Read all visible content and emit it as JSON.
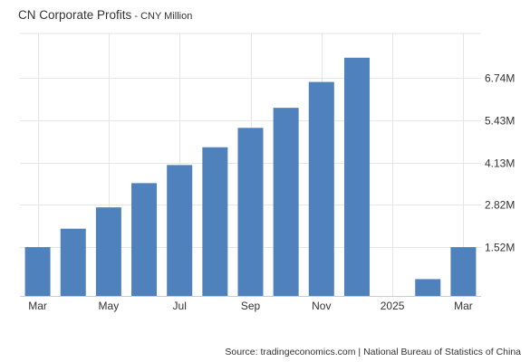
{
  "header": {
    "title": "CN Corporate Profits",
    "separator": " - ",
    "unit": "CNY Million"
  },
  "footer": {
    "source": "Source: tradingeconomics.com | National Bureau of Statistics of China"
  },
  "colors": {
    "bar": "#4f81bd",
    "grid": "#e6e6e6",
    "baseline": "#cccccc"
  },
  "chart_data": {
    "type": "bar",
    "title": "CN Corporate Profits",
    "subtitle": "CNY Million",
    "categories": [
      "2024-03",
      "2024-04",
      "2024-05",
      "2024-06",
      "2024-07",
      "2024-08",
      "2024-09",
      "2024-10",
      "2024-11",
      "2024-12",
      "2025-01",
      "2025-02",
      "2025-03"
    ],
    "values": [
      1510000,
      2080000,
      2740000,
      3490000,
      4050000,
      4600000,
      5200000,
      5820000,
      6620000,
      7370000,
      null,
      520000,
      1510000
    ],
    "x_tick_labels": [
      {
        "category": "2024-03",
        "label": "Mar"
      },
      {
        "category": "2024-05",
        "label": "May"
      },
      {
        "category": "2024-07",
        "label": "Jul"
      },
      {
        "category": "2024-09",
        "label": "Sep"
      },
      {
        "category": "2024-11",
        "label": "Nov"
      },
      {
        "category": "2025-01",
        "label": "2025"
      },
      {
        "category": "2025-03",
        "label": "Mar"
      }
    ],
    "y_ticks": [
      {
        "value": 1520000,
        "label": "1.52M"
      },
      {
        "value": 2820000,
        "label": "2.82M"
      },
      {
        "value": 4130000,
        "label": "4.13M"
      },
      {
        "value": 5430000,
        "label": "5.43M"
      },
      {
        "value": 6740000,
        "label": "6.74M"
      }
    ],
    "ylim": [
      0,
      8120000
    ],
    "y_axis_position": "right",
    "grid": true,
    "legend": "none"
  }
}
